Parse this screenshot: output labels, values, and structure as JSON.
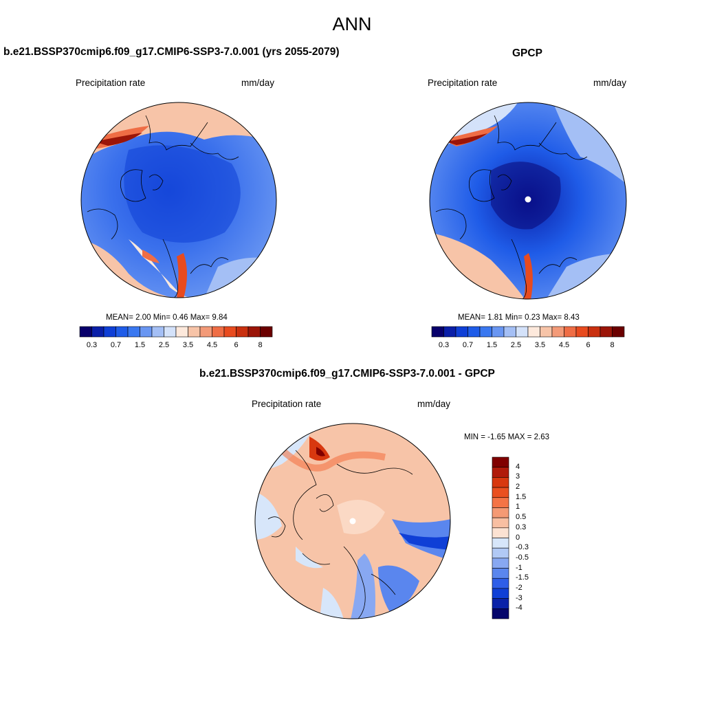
{
  "title": "ANN",
  "panels": {
    "model": {
      "title": "b.e21.BSSP370cmip6.f09_g17.CMIP6-SSP3-7.0.001 (yrs 2055-2079)",
      "left_label": "Precipitation rate",
      "right_label": "mm/day",
      "stats": "MEAN=   2.00  Min=   0.46  Max=   9.84"
    },
    "obs": {
      "title": "GPCP",
      "left_label": "Precipitation rate",
      "right_label": "mm/day",
      "stats": "MEAN=   1.81  Min=   0.23  Max=   8.43"
    },
    "diff": {
      "title": "b.e21.BSSP370cmip6.f09_g17.CMIP6-SSP3-7.0.001 - GPCP",
      "left_label": "Precipitation rate",
      "right_label": "mm/day",
      "stats": "MIN =  -1.65 MAX =   2.63"
    }
  },
  "colorbars": {
    "main": {
      "colors": [
        "#08006b",
        "#0a1fa8",
        "#0f3fd6",
        "#1f5ce8",
        "#3a78f0",
        "#6996f2",
        "#a4bff5",
        "#d4e2fa",
        "#fde9dc",
        "#f7c4a8",
        "#f39a78",
        "#ef6d45",
        "#e84b1f",
        "#c9300f",
        "#9b1508",
        "#6b0000"
      ],
      "ticks": [
        "0.3",
        "0.7",
        "1.5",
        "2.5",
        "3.5",
        "4.5",
        "6",
        "8"
      ]
    },
    "diff": {
      "colors": [
        "#800000",
        "#b01a0a",
        "#d8380f",
        "#ea5020",
        "#f47446",
        "#f59a74",
        "#f8bfa2",
        "#fce2d2",
        "#d7e6fa",
        "#b1c9f5",
        "#88a8f2",
        "#5a86ee",
        "#2e5ee8",
        "#0f3fd6",
        "#0a22a8",
        "#05066b"
      ],
      "ticks": [
        "4",
        "3",
        "2",
        "1.5",
        "1",
        "0.5",
        "0.3",
        "0",
        "-0.3",
        "-0.5",
        "-1",
        "-1.5",
        "-2",
        "-3",
        "-4"
      ]
    }
  }
}
